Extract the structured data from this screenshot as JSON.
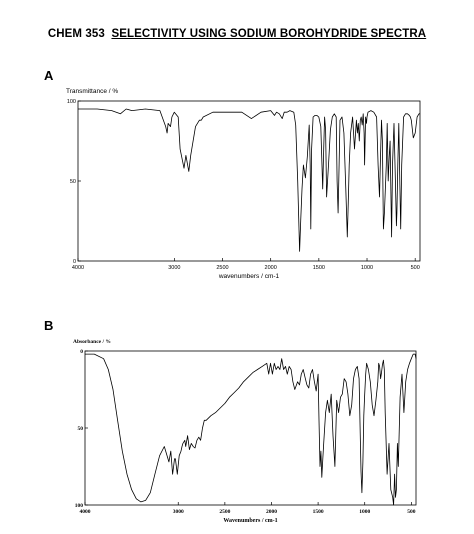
{
  "page": {
    "title_prefix": "CHEM 353",
    "title_main": "SELECTIVITY USING SODIUM BOROHYDRIDE SPECTRA"
  },
  "chart_data": [
    {
      "panel": "A",
      "type": "line",
      "ylabel": "Transmittance / %",
      "xlabel": "wavenumbers / cm-1",
      "xlim": [
        4000,
        450
      ],
      "ylim": [
        0,
        100
      ],
      "xticks": [
        "4000",
        "3000",
        "2500",
        "2000",
        "1500",
        "1000",
        "500"
      ],
      "xtick_values": [
        4000,
        3000,
        2500,
        2000,
        1500,
        1000,
        500
      ],
      "yticks": [
        "0",
        "50",
        "100"
      ],
      "ytick_values": [
        0,
        50,
        100
      ],
      "grid": false,
      "series": [
        {
          "x": [
            4000,
            3800,
            3650,
            3560,
            3500,
            3440,
            3300,
            3150,
            3090,
            3075,
            3065,
            3040,
            3025,
            3000,
            2960,
            2940,
            2900,
            2880,
            2850,
            2830,
            2780,
            2740,
            2720,
            2700,
            2600,
            2400,
            2300,
            2200,
            2100,
            2000,
            1960,
            1940,
            1910,
            1880,
            1860,
            1830,
            1800,
            1760,
            1740,
            1720,
            1700,
            1688,
            1675,
            1660,
            1640,
            1620,
            1600,
            1590,
            1583,
            1575,
            1560,
            1540,
            1520,
            1500,
            1480,
            1460,
            1450,
            1440,
            1430,
            1420,
            1400,
            1380,
            1360,
            1340,
            1320,
            1310,
            1300,
            1290,
            1280,
            1260,
            1240,
            1220,
            1205,
            1195,
            1185,
            1170,
            1150,
            1130,
            1110,
            1100,
            1090,
            1080,
            1070,
            1060,
            1050,
            1040,
            1030,
            1025,
            1015,
            1005,
            1000,
            990,
            960,
            930,
            900,
            885,
            870,
            860,
            850,
            840,
            830,
            820,
            800,
            790,
            780,
            770,
            760,
            750,
            745,
            735,
            720,
            705,
            695,
            690,
            680,
            670,
            660,
            650,
            640,
            620,
            600,
            580,
            560,
            550,
            540,
            520,
            500,
            480,
            460,
            450
          ],
          "y": [
            95,
            95,
            94,
            92,
            95,
            94,
            95,
            94,
            84,
            80,
            86,
            84,
            90,
            93,
            90,
            70,
            58,
            66,
            56,
            66,
            84,
            88,
            88,
            90,
            93,
            93,
            93,
            89,
            93,
            94,
            91,
            93,
            92,
            89,
            93,
            93,
            94,
            93,
            85,
            50,
            6,
            25,
            45,
            60,
            52,
            65,
            85,
            60,
            20,
            70,
            90,
            91,
            91,
            90,
            84,
            45,
            70,
            90,
            82,
            40,
            60,
            82,
            90,
            92,
            90,
            50,
            30,
            60,
            88,
            90,
            80,
            45,
            15,
            35,
            60,
            80,
            90,
            70,
            88,
            80,
            86,
            75,
            88,
            90,
            85,
            92,
            80,
            60,
            90,
            86,
            90,
            93,
            94,
            93,
            90,
            60,
            40,
            65,
            88,
            75,
            20,
            30,
            60,
            86,
            50,
            65,
            75,
            35,
            15,
            60,
            86,
            50,
            22,
            30,
            60,
            86,
            50,
            20,
            60,
            90,
            92,
            92,
            91,
            90,
            88,
            77,
            80,
            90,
            92,
            92
          ]
        }
      ]
    },
    {
      "panel": "B",
      "type": "line",
      "ylabel": "Absorbance / %",
      "xlabel": "Wavenumbers / cm-1",
      "xlim": [
        4000,
        450
      ],
      "ylim": [
        100,
        0
      ],
      "xticks": [
        "4000",
        "3000",
        "2500",
        "2000",
        "1500",
        "1000",
        "500"
      ],
      "xtick_values": [
        4000,
        3000,
        2500,
        2000,
        1500,
        1000,
        500
      ],
      "yticks": [
        "0",
        "50",
        "100"
      ],
      "ytick_values": [
        0,
        50,
        100
      ],
      "grid": false,
      "series": [
        {
          "x": [
            4000,
            3900,
            3800,
            3750,
            3700,
            3650,
            3600,
            3550,
            3500,
            3450,
            3400,
            3350,
            3300,
            3250,
            3200,
            3150,
            3100,
            3080,
            3060,
            3050,
            3040,
            3030,
            3010,
            2990,
            2970,
            2960,
            2950,
            2930,
            2920,
            2900,
            2880,
            2860,
            2840,
            2820,
            2800,
            2780,
            2760,
            2740,
            2720,
            2700,
            2650,
            2600,
            2550,
            2500,
            2450,
            2400,
            2350,
            2300,
            2250,
            2200,
            2150,
            2100,
            2050,
            2030,
            2010,
            1990,
            1970,
            1950,
            1930,
            1910,
            1890,
            1870,
            1850,
            1830,
            1810,
            1790,
            1770,
            1750,
            1720,
            1700,
            1680,
            1660,
            1640,
            1620,
            1600,
            1580,
            1560,
            1540,
            1520,
            1500,
            1490,
            1480,
            1470,
            1460,
            1450,
            1440,
            1420,
            1400,
            1380,
            1360,
            1340,
            1320,
            1300,
            1280,
            1260,
            1240,
            1220,
            1200,
            1180,
            1160,
            1140,
            1120,
            1100,
            1080,
            1060,
            1050,
            1040,
            1030,
            1020,
            1010,
            1000,
            990,
            980,
            960,
            940,
            920,
            900,
            880,
            860,
            850,
            840,
            830,
            820,
            810,
            800,
            790,
            780,
            760,
            740,
            720,
            700,
            690,
            680,
            670,
            660,
            650,
            640,
            620,
            600,
            580,
            560,
            540,
            520,
            500,
            480,
            460,
            450
          ],
          "y": [
            2,
            2,
            5,
            12,
            25,
            45,
            65,
            80,
            90,
            96,
            98,
            97,
            92,
            80,
            68,
            62,
            72,
            65,
            80,
            75,
            70,
            70,
            80,
            68,
            65,
            62,
            60,
            58,
            62,
            55,
            64,
            60,
            62,
            63,
            58,
            56,
            58,
            50,
            45,
            45,
            42,
            40,
            37,
            34,
            30,
            27,
            24,
            20,
            17,
            14,
            12,
            10,
            8,
            15,
            8,
            15,
            8,
            12,
            10,
            12,
            5,
            12,
            10,
            15,
            10,
            12,
            20,
            25,
            20,
            22,
            15,
            12,
            17,
            22,
            24,
            15,
            12,
            20,
            26,
            15,
            45,
            75,
            65,
            82,
            70,
            60,
            40,
            32,
            40,
            28,
            55,
            75,
            32,
            40,
            30,
            28,
            18,
            20,
            28,
            42,
            35,
            18,
            12,
            10,
            18,
            50,
            78,
            92,
            72,
            42,
            28,
            15,
            8,
            12,
            20,
            35,
            42,
            32,
            20,
            8,
            10,
            18,
            14,
            9,
            6,
            12,
            40,
            80,
            60,
            90,
            95,
            100,
            80,
            95,
            90,
            60,
            75,
            30,
            15,
            40,
            20,
            12,
            8,
            5,
            2,
            2,
            5
          ]
        }
      ]
    }
  ]
}
